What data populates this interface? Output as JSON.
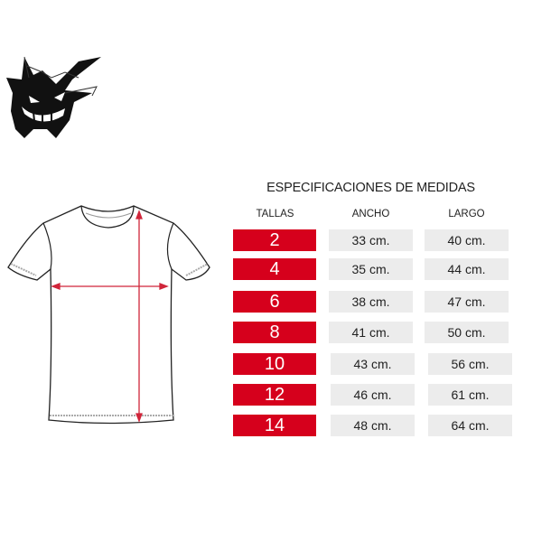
{
  "title": "ESPECIFICACIONES DE MEDIDAS",
  "headers": {
    "tallas": "TALLAS",
    "ancho": "ANCHO",
    "largo": "LARGO"
  },
  "colors": {
    "accent": "#d6001c",
    "cell_bg": "#ececec",
    "arrow": "#d0253a"
  },
  "rows": [
    {
      "talla": "2",
      "ancho": "33 cm.",
      "largo": "40 cm."
    },
    {
      "talla": "4",
      "ancho": "35 cm.",
      "largo": "44 cm."
    },
    {
      "talla": "6",
      "ancho": "38 cm.",
      "largo": "47 cm."
    },
    {
      "talla": "8",
      "ancho": "41 cm.",
      "largo": "50 cm."
    },
    {
      "talla": "10",
      "ancho": "43 cm.",
      "largo": "56 cm."
    },
    {
      "talla": "12",
      "ancho": "46 cm.",
      "largo": "61 cm."
    },
    {
      "talla": "14",
      "ancho": "48 cm.",
      "largo": "64 cm."
    }
  ]
}
